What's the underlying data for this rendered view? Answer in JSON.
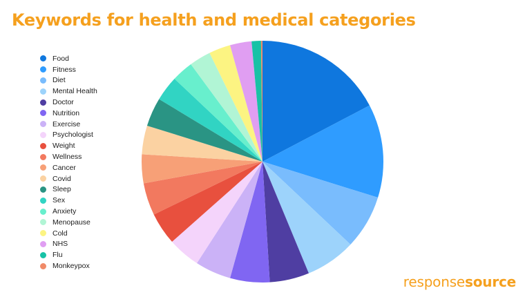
{
  "chart_data": {
    "type": "pie",
    "title": "Keywords for health and medical categories",
    "legend_position": "left",
    "series": [
      {
        "name": "Food",
        "value": 18.0,
        "color": "#0f77de"
      },
      {
        "name": "Fitness",
        "value": 13.0,
        "color": "#2f9cff"
      },
      {
        "name": "Diet",
        "value": 7.5,
        "color": "#79bcfd"
      },
      {
        "name": "Mental Health",
        "value": 7.0,
        "color": "#9dd3fb"
      },
      {
        "name": "Doctor",
        "value": 5.5,
        "color": "#4f3ea2"
      },
      {
        "name": "Nutrition",
        "value": 5.5,
        "color": "#8066f2"
      },
      {
        "name": "Exercise",
        "value": 5.0,
        "color": "#cbb2f7"
      },
      {
        "name": "Psychologist",
        "value": 4.5,
        "color": "#f4d4fb"
      },
      {
        "name": "Weight",
        "value": 4.5,
        "color": "#e8503e"
      },
      {
        "name": "Wellness",
        "value": 4.5,
        "color": "#f2795f"
      },
      {
        "name": "Cancer",
        "value": 4.0,
        "color": "#f7a077"
      },
      {
        "name": "Covid",
        "value": 4.0,
        "color": "#fbd2a2"
      },
      {
        "name": "Sleep",
        "value": 4.0,
        "color": "#2a9484"
      },
      {
        "name": "Sex",
        "value": 3.5,
        "color": "#31d4c3"
      },
      {
        "name": "Anxiety",
        "value": 3.0,
        "color": "#68efcd"
      },
      {
        "name": "Menopause",
        "value": 3.0,
        "color": "#b1f5d5"
      },
      {
        "name": "Cold",
        "value": 3.0,
        "color": "#fcf482"
      },
      {
        "name": "NHS",
        "value": 3.0,
        "color": "#e09ef2"
      },
      {
        "name": "Flu",
        "value": 1.3,
        "color": "#17c2a6"
      },
      {
        "name": "Monkeypox",
        "value": 0.2,
        "color": "#f08a68"
      }
    ]
  },
  "brand": {
    "part1": "response",
    "part2": "source"
  }
}
